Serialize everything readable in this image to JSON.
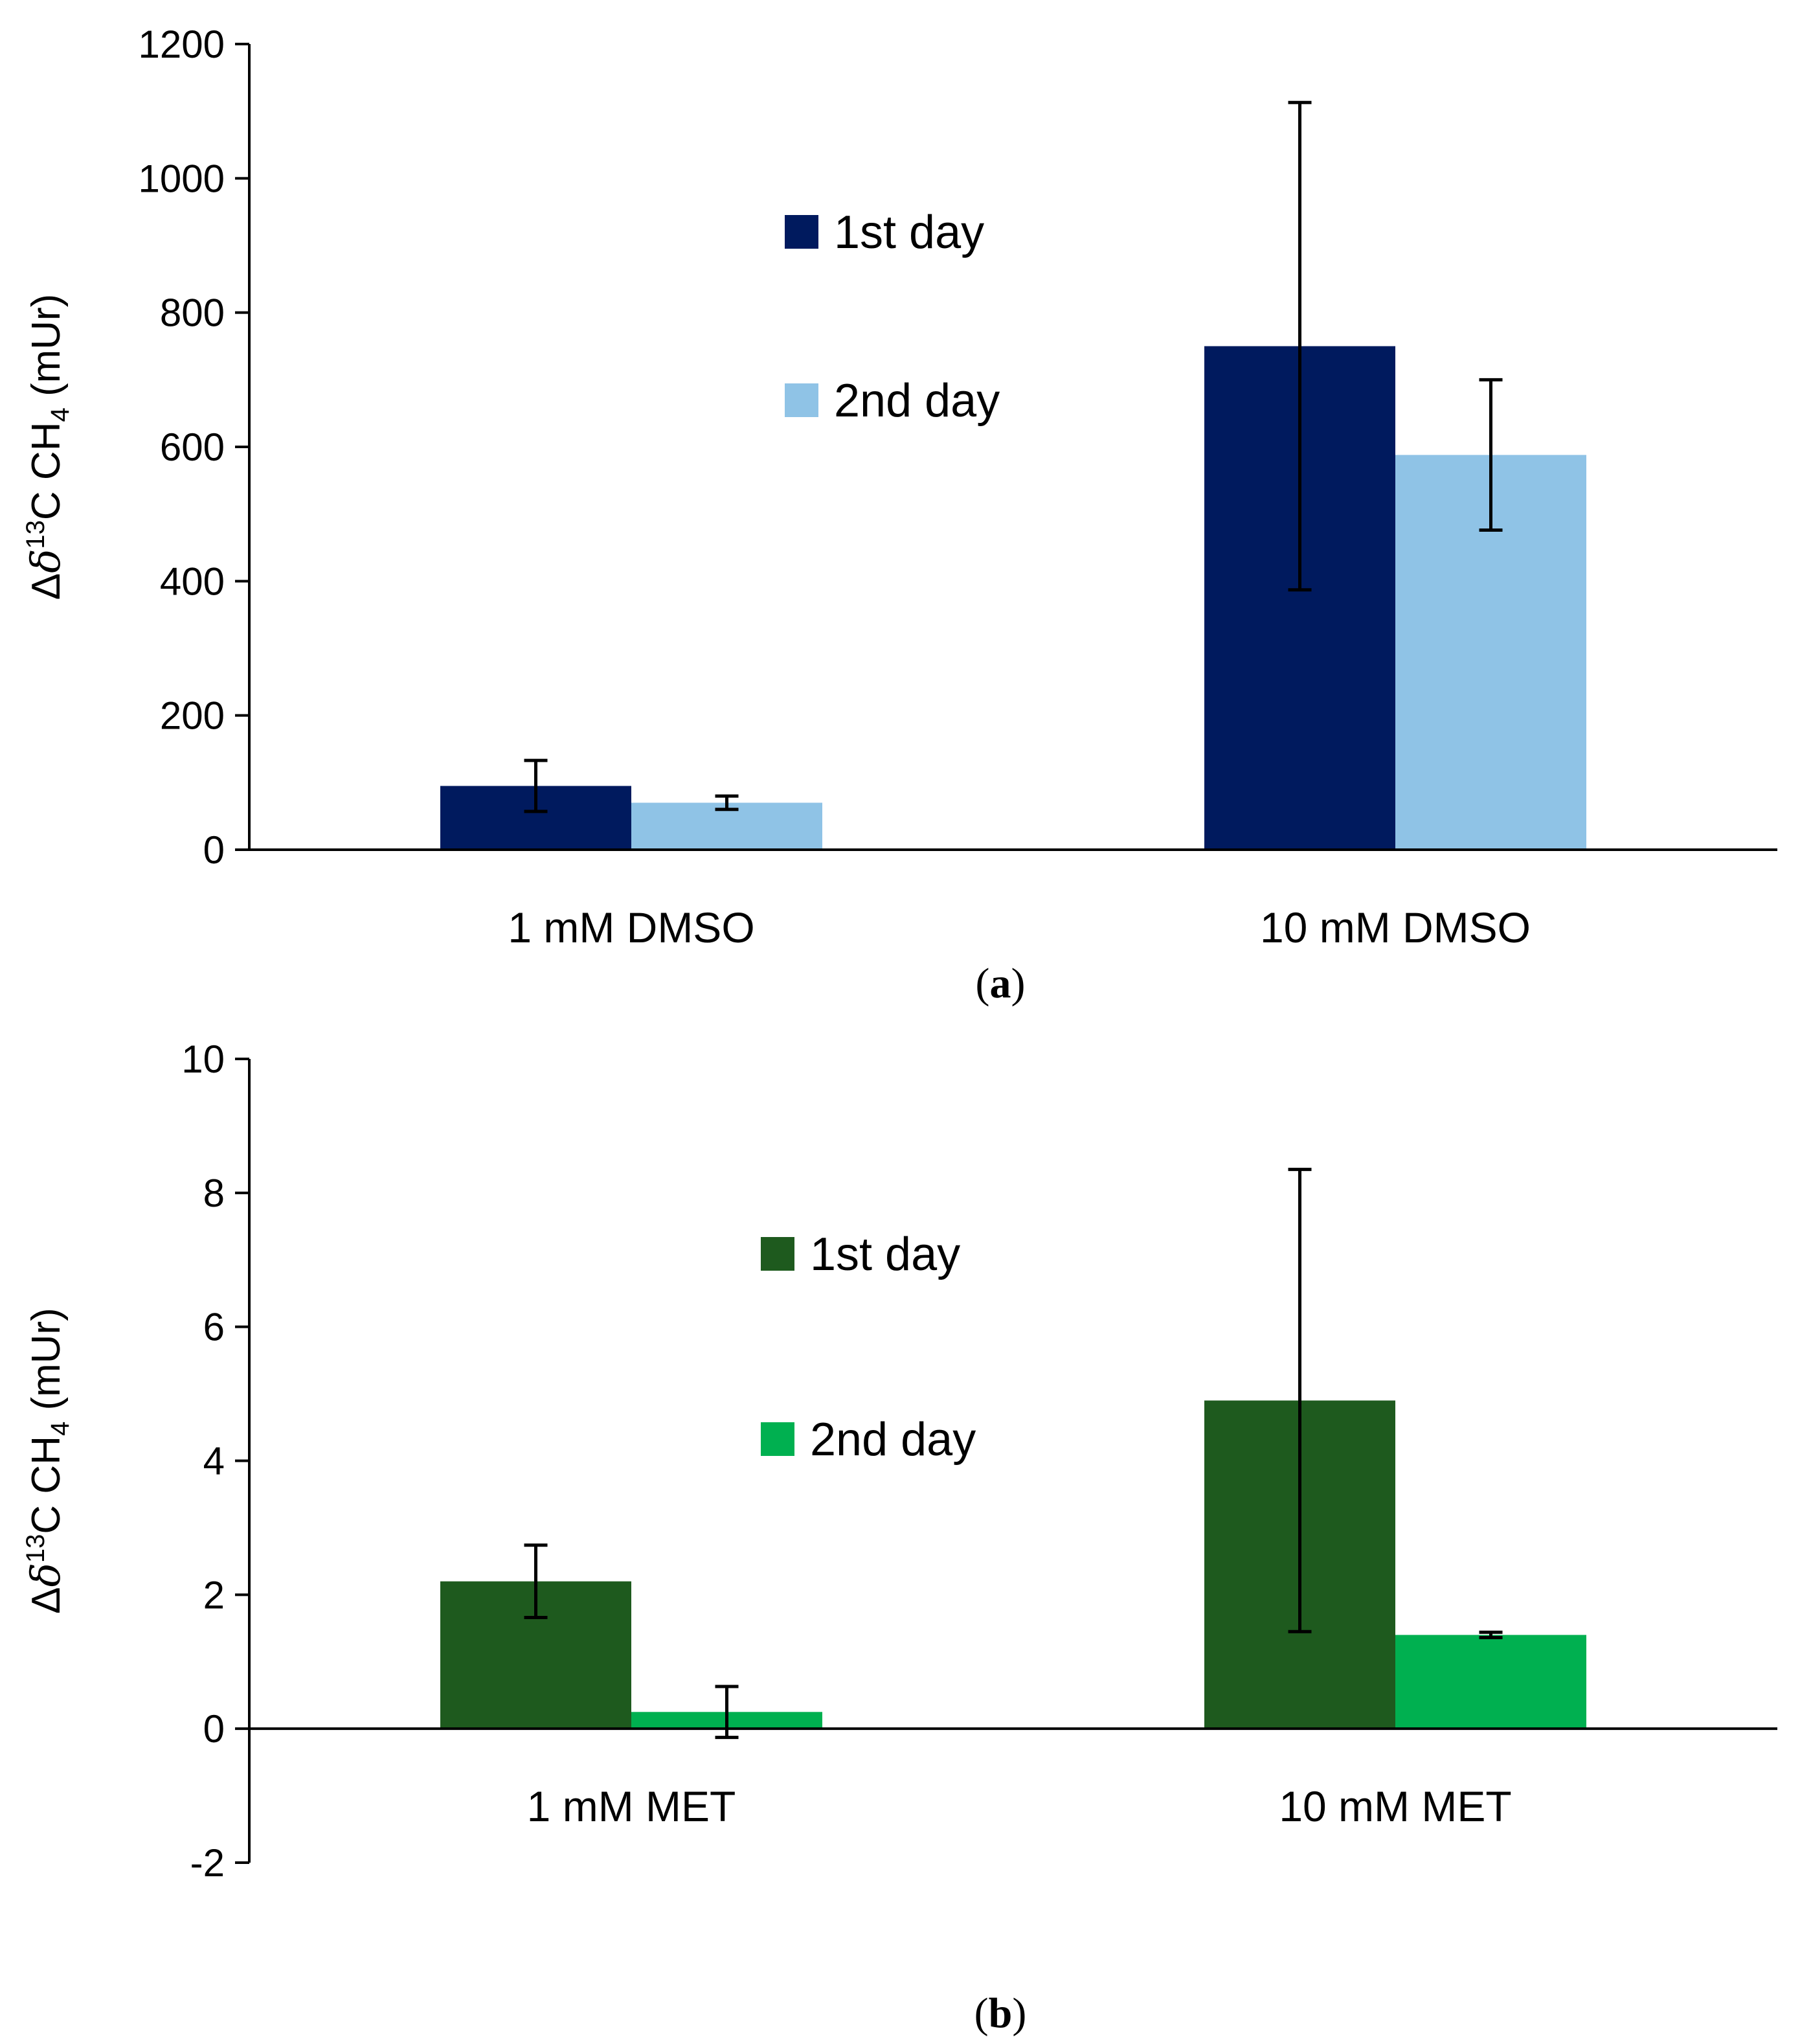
{
  "chart_data": [
    {
      "type": "bar",
      "panel_label": "a",
      "categories": [
        "1 mM DMSO",
        "10 mM DMSO"
      ],
      "series": [
        {
          "name": "1st day",
          "color": "#001a5e",
          "values": [
            95,
            750
          ],
          "errors": [
            38,
            363
          ]
        },
        {
          "name": "2nd day",
          "color": "#8fc3e6",
          "values": [
            70,
            588
          ],
          "errors": [
            10,
            112
          ]
        }
      ],
      "ylabel": {
        "prefix": "Δ",
        "delta": "δ",
        "superscript": "13",
        "mid": "C CH",
        "subscript": "4",
        "suffix": " (mUr)"
      },
      "ylim": [
        0,
        1200
      ],
      "yticks": [
        "0",
        "200",
        "400",
        "600",
        "800",
        "1000",
        "1200"
      ],
      "ytick_values": [
        0,
        200,
        400,
        600,
        800,
        1000,
        1200
      ],
      "legend_position": "top-center",
      "grid": false
    },
    {
      "type": "bar",
      "panel_label": "b",
      "categories": [
        "1 mM MET",
        "10 mM MET"
      ],
      "series": [
        {
          "name": "1st day",
          "color": "#1e5a1e",
          "values": [
            2.2,
            4.9
          ],
          "errors": [
            0.54,
            3.45
          ]
        },
        {
          "name": "2nd day",
          "color": "#00b050",
          "values": [
            0.25,
            1.4
          ],
          "errors": [
            0.38,
            0.04
          ]
        }
      ],
      "ylabel": {
        "prefix": "Δ",
        "delta": "δ",
        "superscript": "13",
        "mid": "C CH",
        "subscript": "4",
        "suffix": " (mUr)"
      },
      "ylim": [
        -2,
        10
      ],
      "yticks": [
        "-2",
        "0",
        "2",
        "4",
        "6",
        "8",
        "10"
      ],
      "ytick_values": [
        -2,
        0,
        2,
        4,
        6,
        8,
        10
      ],
      "legend_position": "top-center",
      "grid": false
    }
  ]
}
